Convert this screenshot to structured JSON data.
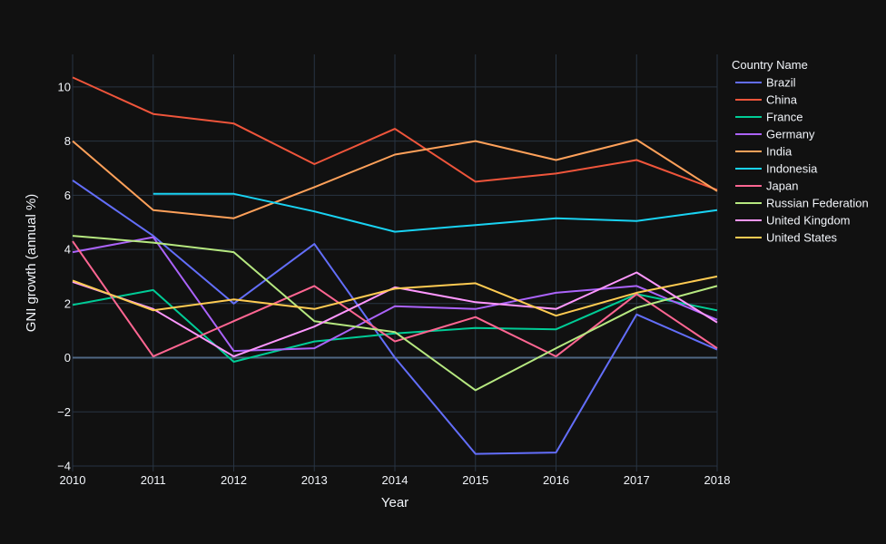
{
  "chart_data": {
    "type": "line",
    "xlabel": "Year",
    "ylabel": "GNI growth (annual %)",
    "x": [
      2010,
      2011,
      2012,
      2013,
      2014,
      2015,
      2016,
      2017,
      2018
    ],
    "xlim": [
      2010,
      2018
    ],
    "ylim": [
      -4.2,
      11.2
    ],
    "yticks": [
      -4,
      -2,
      0,
      2,
      4,
      6,
      8,
      10
    ],
    "grid": true,
    "legend_title": "Country Name",
    "legend_position": "right",
    "series": [
      {
        "name": "Brazil",
        "color": "#636efa",
        "values": [
          6.55,
          4.5,
          2.0,
          4.2,
          0.0,
          -3.55,
          -3.5,
          1.6,
          0.3
        ]
      },
      {
        "name": "China",
        "color": "#EF553B",
        "values": [
          10.35,
          9.0,
          8.65,
          7.15,
          8.45,
          6.5,
          6.8,
          7.3,
          6.2
        ]
      },
      {
        "name": "France",
        "color": "#00cc96",
        "values": [
          1.95,
          2.5,
          -0.15,
          0.6,
          0.9,
          1.1,
          1.05,
          2.35,
          1.75
        ]
      },
      {
        "name": "Germany",
        "color": "#ab63fa",
        "values": [
          3.9,
          4.45,
          0.25,
          0.35,
          1.9,
          1.8,
          2.4,
          2.65,
          1.4
        ]
      },
      {
        "name": "India",
        "color": "#FFA15A",
        "values": [
          8.0,
          5.45,
          5.15,
          6.3,
          7.5,
          8.0,
          7.3,
          8.05,
          6.15
        ]
      },
      {
        "name": "Indonesia",
        "color": "#19d3f3",
        "values": [
          null,
          6.05,
          6.05,
          5.4,
          4.65,
          4.9,
          5.15,
          5.05,
          5.45
        ]
      },
      {
        "name": "Japan",
        "color": "#FF6692",
        "values": [
          4.3,
          0.05,
          1.35,
          2.65,
          0.6,
          1.5,
          0.05,
          2.35,
          0.35
        ]
      },
      {
        "name": "Russian Federation",
        "color": "#B6E880",
        "values": [
          4.5,
          4.25,
          3.9,
          1.35,
          0.95,
          -1.2,
          0.35,
          1.85,
          2.65
        ]
      },
      {
        "name": "United Kingdom",
        "color": "#FF97FF",
        "values": [
          2.8,
          1.8,
          0.05,
          1.15,
          2.6,
          2.05,
          1.8,
          3.15,
          1.3
        ]
      },
      {
        "name": "United States",
        "color": "#FECB52",
        "values": [
          2.85,
          1.75,
          2.15,
          1.8,
          2.55,
          2.75,
          1.55,
          2.4,
          3.0
        ]
      }
    ]
  }
}
